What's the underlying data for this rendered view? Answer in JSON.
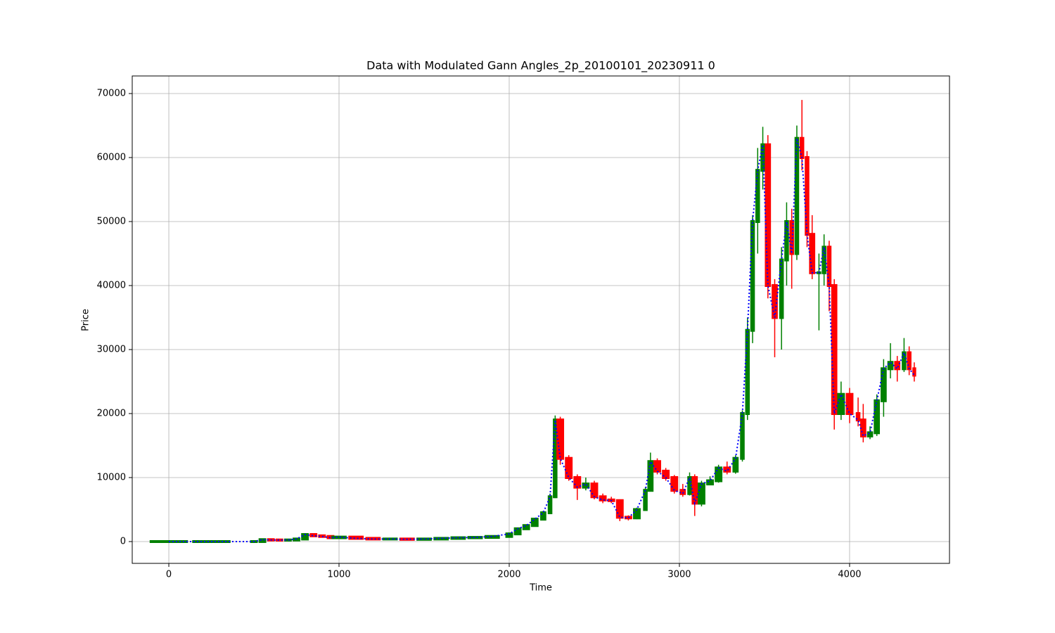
{
  "chart_data": {
    "type": "candlestick",
    "title": "Data with Modulated Gann Angles_2p_20100101_20230911 0",
    "xlabel": "Time",
    "ylabel": "Price",
    "xlim": [
      -215,
      4587
    ],
    "ylim": [
      -3407,
      72747
    ],
    "xticks": [
      0,
      1000,
      2000,
      3000,
      4000
    ],
    "yticks": [
      0,
      10000,
      20000,
      30000,
      40000,
      50000,
      60000,
      70000
    ],
    "grid": true,
    "up_color": "#008000",
    "down_color": "#ff0000",
    "line_color": "#0000ff",
    "x": [
      0,
      250,
      500,
      550,
      600,
      650,
      700,
      750,
      800,
      850,
      900,
      950,
      1000,
      1100,
      1200,
      1300,
      1400,
      1500,
      1600,
      1700,
      1800,
      1900,
      2000,
      2050,
      2100,
      2150,
      2200,
      2240,
      2270,
      2300,
      2350,
      2400,
      2450,
      2500,
      2550,
      2600,
      2650,
      2700,
      2750,
      2800,
      2830,
      2870,
      2920,
      2970,
      3020,
      3060,
      3090,
      3130,
      3180,
      3230,
      3280,
      3330,
      3370,
      3400,
      3430,
      3460,
      3490,
      3520,
      3560,
      3600,
      3630,
      3660,
      3690,
      3720,
      3750,
      3780,
      3820,
      3850,
      3880,
      3910,
      3950,
      4000,
      4050,
      4080,
      4120,
      4160,
      4200,
      4240,
      4280,
      4320,
      4350,
      4380
    ],
    "open": [
      0,
      0,
      0,
      5,
      300,
      250,
      230,
      250,
      400,
      1100,
      900,
      800,
      600,
      700,
      500,
      400,
      400,
      350,
      400,
      500,
      600,
      650,
      800,
      1200,
      2000,
      2500,
      3500,
      4500,
      7000,
      19000,
      13000,
      10000,
      8500,
      9000,
      7000,
      6500,
      6400,
      3800,
      3700,
      5000,
      8000,
      12500,
      11000,
      10000,
      8000,
      7500,
      10000,
      6000,
      9000,
      9500,
      11500,
      11000,
      13000,
      20000,
      33000,
      50000,
      58000,
      62000,
      40000,
      35000,
      44000,
      50000,
      45000,
      63000,
      60000,
      48000,
      42000,
      42000,
      46000,
      40000,
      20000,
      23000,
      20000,
      19000,
      16500,
      17000,
      22000,
      27000,
      28000,
      27000,
      29500,
      27000
    ],
    "high": [
      0,
      0,
      10,
      350,
      320,
      270,
      280,
      450,
      1300,
      1200,
      950,
      850,
      750,
      750,
      520,
      430,
      420,
      430,
      530,
      630,
      700,
      850,
      1300,
      2200,
      2700,
      3700,
      4800,
      7500,
      19700,
      19500,
      13500,
      10500,
      10000,
      9500,
      7500,
      7000,
      6600,
      4100,
      5300,
      8500,
      13900,
      13000,
      11500,
      10400,
      9000,
      10800,
      10500,
      9500,
      10200,
      12000,
      12500,
      13500,
      20500,
      35000,
      51000,
      61500,
      64800,
      63500,
      41000,
      46000,
      53000,
      52000,
      65000,
      69000,
      61000,
      51000,
      45000,
      48000,
      47000,
      41000,
      25000,
      24000,
      22500,
      21500,
      18000,
      23000,
      28500,
      31000,
      29000,
      31800,
      30500,
      28000
    ],
    "low": [
      0,
      0,
      0,
      5,
      230,
      210,
      220,
      240,
      380,
      850,
      750,
      550,
      580,
      480,
      380,
      370,
      330,
      330,
      380,
      480,
      580,
      630,
      780,
      1150,
      1900,
      2400,
      3300,
      4300,
      6800,
      12000,
      9500,
      6500,
      8000,
      6600,
      6000,
      6000,
      3200,
      3300,
      3500,
      4800,
      7800,
      10500,
      9500,
      7500,
      7000,
      7200,
      4000,
      5500,
      8800,
      9200,
      10500,
      10600,
      12500,
      19000,
      31000,
      45000,
      55000,
      38000,
      28800,
      30000,
      40000,
      39500,
      44000,
      58000,
      46000,
      41000,
      33000,
      40000,
      36000,
      17500,
      19000,
      18500,
      18000,
      15500,
      16000,
      16500,
      19500,
      25500,
      25000,
      26500,
      26000,
      25000
    ],
    "close": [
      0,
      0,
      5,
      300,
      250,
      230,
      250,
      400,
      1100,
      900,
      800,
      600,
      700,
      500,
      400,
      400,
      350,
      400,
      500,
      600,
      650,
      800,
      1200,
      2000,
      2500,
      3500,
      4500,
      7000,
      19000,
      13000,
      10000,
      8500,
      9000,
      7000,
      6500,
      6400,
      3800,
      3700,
      5000,
      8000,
      12500,
      11000,
      10000,
      8000,
      7500,
      10000,
      6000,
      9000,
      9500,
      11500,
      11000,
      13000,
      20000,
      33000,
      50000,
      58000,
      62000,
      40000,
      35000,
      44000,
      50000,
      45000,
      63000,
      60000,
      48000,
      42000,
      42000,
      46000,
      40000,
      20000,
      23000,
      20000,
      19000,
      16500,
      17000,
      22000,
      27000,
      28000,
      27000,
      29500,
      27000,
      26000
    ]
  }
}
